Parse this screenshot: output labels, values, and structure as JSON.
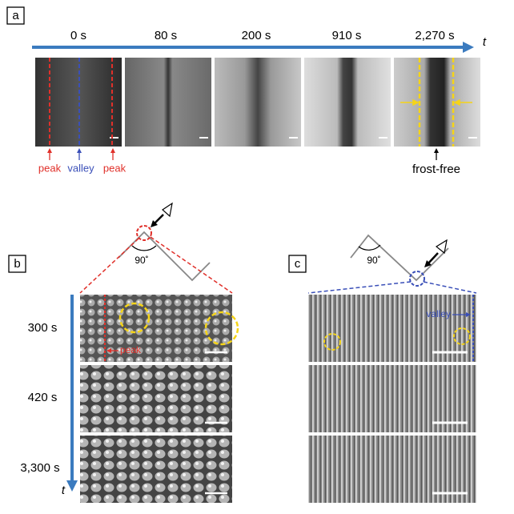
{
  "panel_a": {
    "label": "a",
    "times": [
      "0 s",
      "80 s",
      "200 s",
      "910 s",
      "2,270 s"
    ],
    "axis_label": "t",
    "markers": [
      "peak",
      "valley",
      "peak"
    ],
    "annotation": "frost-free"
  },
  "panel_b": {
    "label": "b",
    "angle": "90˚",
    "times": [
      "300 s",
      "420 s",
      "3,300 s"
    ],
    "axis_label": "t",
    "marker": "peak"
  },
  "panel_c": {
    "label": "c",
    "angle": "90˚",
    "marker": "valley"
  }
}
